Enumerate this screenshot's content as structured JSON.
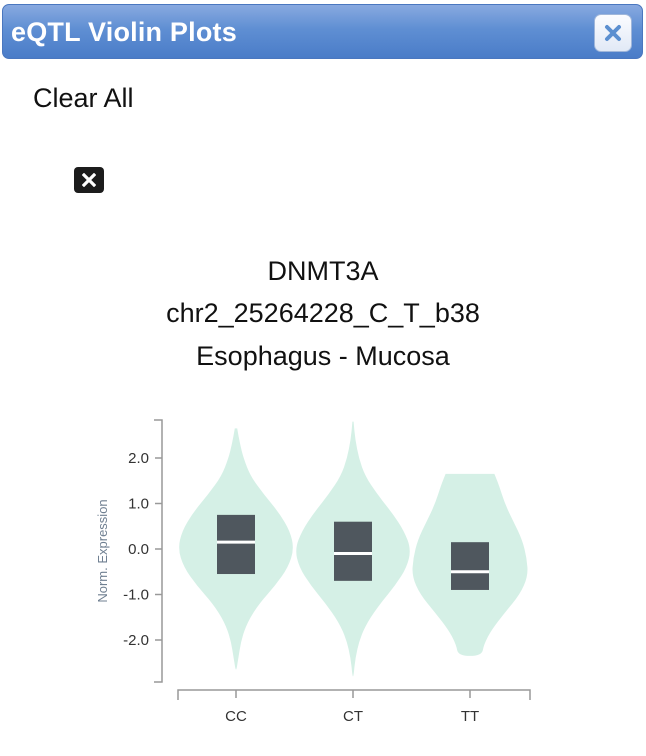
{
  "window": {
    "title": "eQTL Violin Plots",
    "close_icon": "close-icon"
  },
  "toolbar": {
    "clear_all_label": "Clear All",
    "remove_icon": "remove-plot-icon"
  },
  "plot": {
    "title_line1": "DNMT3A",
    "title_line2": "chr2_25264228_C_T_b38",
    "title_line3": "Esophagus - Mucosa"
  },
  "colors": {
    "violin_fill": "#d5f0e6",
    "box_fill": "#4f575e",
    "median": "#ffffff",
    "axis": "#999999"
  },
  "chart_data": {
    "type": "violin",
    "ylabel": "Norm. Expression",
    "yticks": [
      "2.0",
      "1.0",
      "0.0",
      "-1.0",
      "-2.0"
    ],
    "ytick_values": [
      2.0,
      1.0,
      0.0,
      -1.0,
      -2.0
    ],
    "ylim": [
      -2.9,
      2.9
    ],
    "categories": [
      "CC",
      "CT",
      "TT"
    ],
    "groups": [
      {
        "name": "CC",
        "min": -2.65,
        "max": 2.65,
        "q1": -0.55,
        "median": 0.15,
        "q3": 0.75,
        "density": [
          [
            2.65,
            0.02
          ],
          [
            2.3,
            0.07
          ],
          [
            2.0,
            0.13
          ],
          [
            1.6,
            0.25
          ],
          [
            1.2,
            0.48
          ],
          [
            0.8,
            0.74
          ],
          [
            0.4,
            0.93
          ],
          [
            0.0,
            1.0
          ],
          [
            -0.4,
            0.9
          ],
          [
            -0.8,
            0.68
          ],
          [
            -1.2,
            0.4
          ],
          [
            -1.6,
            0.2
          ],
          [
            -2.0,
            0.09
          ],
          [
            -2.4,
            0.04
          ],
          [
            -2.65,
            0.01
          ]
        ]
      },
      {
        "name": "CT",
        "min": -2.8,
        "max": 2.8,
        "q1": -0.7,
        "median": -0.1,
        "q3": 0.6,
        "density": [
          [
            2.8,
            0.01
          ],
          [
            2.4,
            0.04
          ],
          [
            2.0,
            0.1
          ],
          [
            1.6,
            0.21
          ],
          [
            1.2,
            0.42
          ],
          [
            0.8,
            0.67
          ],
          [
            0.4,
            0.88
          ],
          [
            0.0,
            1.0
          ],
          [
            -0.4,
            0.93
          ],
          [
            -0.8,
            0.73
          ],
          [
            -1.2,
            0.47
          ],
          [
            -1.6,
            0.25
          ],
          [
            -2.0,
            0.11
          ],
          [
            -2.4,
            0.04
          ],
          [
            -2.8,
            0.01
          ]
        ]
      },
      {
        "name": "TT",
        "min": -2.35,
        "max": 1.65,
        "q1": -0.9,
        "median": -0.5,
        "q3": 0.15,
        "density": [
          [
            1.65,
            0.42
          ],
          [
            1.4,
            0.5
          ],
          [
            1.0,
            0.6
          ],
          [
            0.6,
            0.75
          ],
          [
            0.2,
            0.9
          ],
          [
            -0.2,
            0.98
          ],
          [
            -0.6,
            1.0
          ],
          [
            -1.0,
            0.86
          ],
          [
            -1.4,
            0.6
          ],
          [
            -1.8,
            0.36
          ],
          [
            -2.1,
            0.24
          ],
          [
            -2.35,
            0.2
          ]
        ]
      }
    ]
  }
}
